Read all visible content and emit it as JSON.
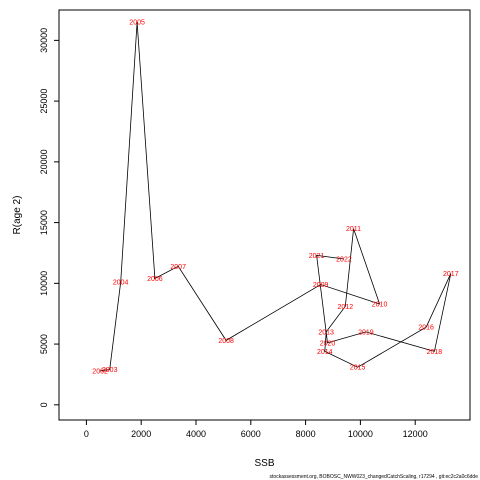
{
  "chart_data": {
    "type": "line",
    "xlabel": "SSB",
    "ylabel": "R(age 2)",
    "xlim": [
      -1000,
      14000
    ],
    "ylim": [
      -1250,
      32500
    ],
    "xticks": [
      0,
      2000,
      4000,
      6000,
      8000,
      10000,
      12000
    ],
    "xtick_labels": [
      "0",
      "2000",
      "4000",
      "6000",
      "8000",
      "10000",
      "12000"
    ],
    "yticks": [
      0,
      5000,
      10000,
      15000,
      20000,
      25000,
      30000
    ],
    "ytick_labels": [
      "0",
      "5000",
      "10000",
      "15000",
      "20000",
      "25000",
      "30000"
    ],
    "grid": false,
    "line_color": "#000000",
    "label_color": "#ff0000",
    "points": [
      {
        "label": "2002",
        "x": 500,
        "y": 2800
      },
      {
        "label": "2003",
        "x": 850,
        "y": 2900
      },
      {
        "label": "2004",
        "x": 1250,
        "y": 10100
      },
      {
        "label": "2005",
        "x": 1850,
        "y": 31500
      },
      {
        "label": "2006",
        "x": 2500,
        "y": 10400
      },
      {
        "label": "2007",
        "x": 3350,
        "y": 11400
      },
      {
        "label": "2008",
        "x": 5100,
        "y": 5300
      },
      {
        "label": "2009",
        "x": 8550,
        "y": 9900
      },
      {
        "label": "2010",
        "x": 10700,
        "y": 8300
      },
      {
        "label": "2011",
        "x": 9750,
        "y": 14500
      },
      {
        "label": "2012",
        "x": 9450,
        "y": 8100
      },
      {
        "label": "2013",
        "x": 8750,
        "y": 6000
      },
      {
        "label": "2014",
        "x": 8700,
        "y": 4400
      },
      {
        "label": "2015",
        "x": 9900,
        "y": 3100
      },
      {
        "label": "2016",
        "x": 12400,
        "y": 6400
      },
      {
        "label": "2017",
        "x": 13300,
        "y": 10800
      },
      {
        "label": "2018",
        "x": 12700,
        "y": 4400
      },
      {
        "label": "2019",
        "x": 10200,
        "y": 6000
      },
      {
        "label": "2020",
        "x": 8800,
        "y": 5100
      },
      {
        "label": "2021",
        "x": 8400,
        "y": 12300
      },
      {
        "label": "2022",
        "x": 9400,
        "y": 12000
      }
    ],
    "path_order": [
      "2002",
      "2003",
      "2004",
      "2005",
      "2006",
      "2007",
      "2008",
      "2009",
      "2010",
      "2011",
      "2012",
      "2013",
      "2014",
      "2015",
      "2016",
      "2017",
      "2018",
      "2019",
      "2020",
      "2021",
      "2022"
    ],
    "caption": "stockassessment.org, BOBOSC_NWW023_changedCatchScaling, r17294 , git:ec2c2a0c6dde"
  }
}
